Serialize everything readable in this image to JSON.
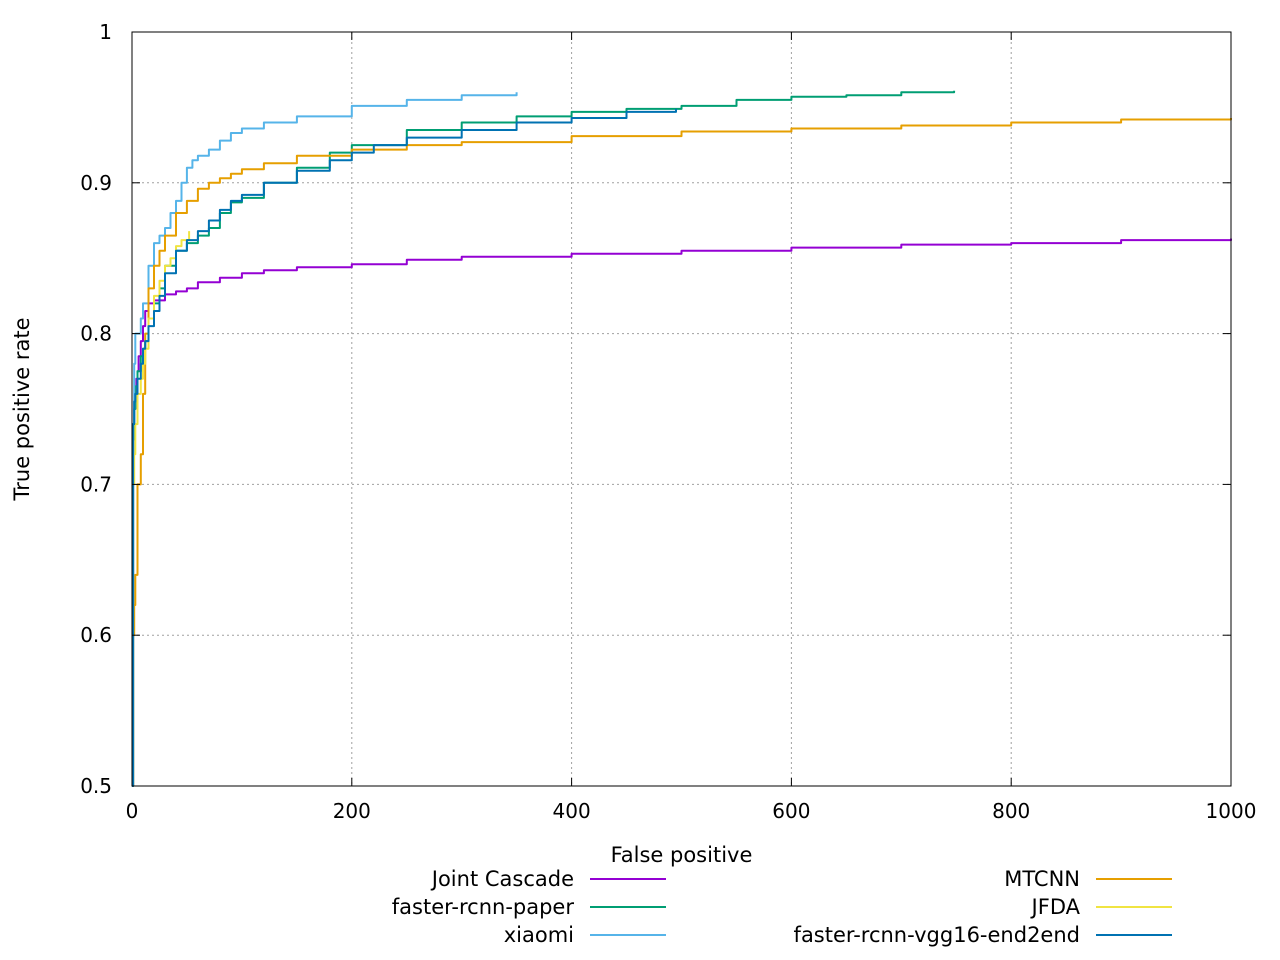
{
  "chart_data": {
    "type": "line",
    "title": "",
    "xlabel": "False positive",
    "ylabel": "True positive rate",
    "xlim": [
      0,
      1000
    ],
    "ylim": [
      0.5,
      1
    ],
    "xticks": [
      0,
      200,
      400,
      600,
      800,
      1000
    ],
    "xtick_labels": [
      "0",
      "200",
      "400",
      "600",
      "800",
      "1000"
    ],
    "yticks": [
      0.5,
      0.6,
      0.7,
      0.8,
      0.9,
      1
    ],
    "ytick_labels": [
      "0.5",
      "0.6",
      "0.7",
      "0.8",
      "0.9",
      "1"
    ],
    "grid": true,
    "legend_position": "bottom",
    "series": [
      {
        "name": "Joint Cascade",
        "color": "#9400d3",
        "x": [
          0,
          1,
          2,
          3,
          4,
          5,
          6,
          8,
          10,
          12,
          15,
          20,
          30,
          40,
          50,
          60,
          80,
          100,
          120,
          150,
          200,
          250,
          300,
          400,
          500,
          600,
          700,
          800,
          900,
          1000
        ],
        "y": [
          0.5,
          0.73,
          0.75,
          0.76,
          0.77,
          0.775,
          0.785,
          0.795,
          0.805,
          0.815,
          0.82,
          0.822,
          0.826,
          0.828,
          0.83,
          0.834,
          0.837,
          0.84,
          0.842,
          0.844,
          0.846,
          0.849,
          0.851,
          0.853,
          0.855,
          0.857,
          0.859,
          0.86,
          0.862,
          0.863
        ]
      },
      {
        "name": "faster-rcnn-paper",
        "color": "#009e73",
        "x": [
          0,
          1,
          2,
          3,
          5,
          8,
          10,
          12,
          15,
          20,
          25,
          30,
          40,
          50,
          60,
          70,
          80,
          90,
          100,
          120,
          150,
          180,
          200,
          250,
          300,
          350,
          400,
          450,
          500,
          550,
          600,
          650,
          700,
          748
        ],
        "y": [
          0.5,
          0.73,
          0.75,
          0.765,
          0.775,
          0.785,
          0.79,
          0.795,
          0.81,
          0.82,
          0.83,
          0.845,
          0.855,
          0.86,
          0.865,
          0.87,
          0.88,
          0.887,
          0.89,
          0.9,
          0.91,
          0.92,
          0.925,
          0.935,
          0.94,
          0.944,
          0.947,
          0.949,
          0.951,
          0.955,
          0.957,
          0.958,
          0.96,
          0.961
        ]
      },
      {
        "name": "xiaomi",
        "color": "#56b4e9",
        "x": [
          0,
          1,
          2,
          3,
          5,
          8,
          10,
          15,
          20,
          25,
          30,
          35,
          40,
          45,
          50,
          55,
          60,
          70,
          80,
          90,
          100,
          120,
          150,
          200,
          250,
          300,
          350
        ],
        "y": [
          0.5,
          0.74,
          0.78,
          0.8,
          0.8,
          0.81,
          0.82,
          0.845,
          0.86,
          0.865,
          0.87,
          0.88,
          0.888,
          0.9,
          0.91,
          0.915,
          0.918,
          0.922,
          0.928,
          0.933,
          0.936,
          0.94,
          0.944,
          0.951,
          0.955,
          0.958,
          0.96
        ]
      },
      {
        "name": "MTCNN",
        "color": "#e69f00",
        "x": [
          0,
          1,
          2,
          3,
          5,
          8,
          10,
          12,
          15,
          20,
          25,
          30,
          40,
          50,
          60,
          70,
          80,
          90,
          100,
          120,
          150,
          200,
          250,
          300,
          400,
          500,
          600,
          700,
          800,
          900,
          1000
        ],
        "y": [
          0.5,
          0.6,
          0.62,
          0.64,
          0.7,
          0.72,
          0.76,
          0.8,
          0.83,
          0.845,
          0.855,
          0.865,
          0.88,
          0.888,
          0.896,
          0.9,
          0.903,
          0.906,
          0.909,
          0.913,
          0.918,
          0.922,
          0.925,
          0.927,
          0.931,
          0.934,
          0.936,
          0.938,
          0.94,
          0.942,
          0.943
        ]
      },
      {
        "name": "JFDA",
        "color": "#f0e442",
        "x": [
          0,
          1,
          2,
          3,
          5,
          8,
          10,
          12,
          15,
          20,
          25,
          30,
          35,
          40,
          45,
          52
        ],
        "y": [
          0.5,
          0.7,
          0.72,
          0.74,
          0.76,
          0.77,
          0.78,
          0.79,
          0.81,
          0.825,
          0.835,
          0.845,
          0.85,
          0.858,
          0.862,
          0.868
        ]
      },
      {
        "name": "faster-rcnn-vgg16-end2end",
        "color": "#0072b2",
        "x": [
          0,
          1,
          2,
          3,
          5,
          8,
          10,
          12,
          15,
          20,
          25,
          30,
          40,
          50,
          60,
          70,
          80,
          90,
          100,
          120,
          150,
          180,
          200,
          220,
          250,
          300,
          350,
          400,
          450,
          495
        ],
        "y": [
          0.5,
          0.74,
          0.755,
          0.76,
          0.77,
          0.78,
          0.79,
          0.795,
          0.805,
          0.815,
          0.825,
          0.84,
          0.855,
          0.862,
          0.868,
          0.875,
          0.882,
          0.888,
          0.892,
          0.9,
          0.908,
          0.915,
          0.92,
          0.925,
          0.93,
          0.935,
          0.94,
          0.943,
          0.947,
          0.949
        ]
      }
    ]
  }
}
